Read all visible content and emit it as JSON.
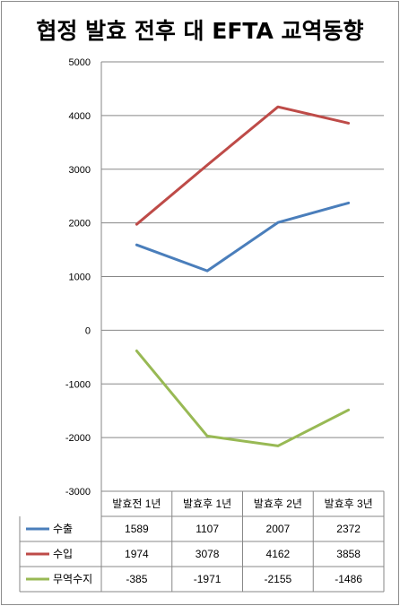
{
  "chart_data": {
    "type": "line",
    "title": "협정 발효 전후 대 EFTA 교역동향",
    "categories": [
      "발효전 1년",
      "발효후 1년",
      "발효후 2년",
      "발효후 3년"
    ],
    "series": [
      {
        "name": "수출",
        "values": [
          1589,
          1107,
          2007,
          2372
        ],
        "color": "#4a7ebb"
      },
      {
        "name": "수입",
        "values": [
          1974,
          3078,
          4162,
          3858
        ],
        "color": "#be4b48"
      },
      {
        "name": "무역수지",
        "values": [
          -385,
          -1971,
          -2155,
          -1486
        ],
        "color": "#98b954"
      }
    ],
    "yticks": [
      "5000",
      "4000",
      "3000",
      "2000",
      "1000",
      "0",
      "-1000",
      "-2000",
      "-3000"
    ],
    "ylim": [
      -3000,
      5000
    ],
    "grid": true,
    "legend": "data-table"
  }
}
